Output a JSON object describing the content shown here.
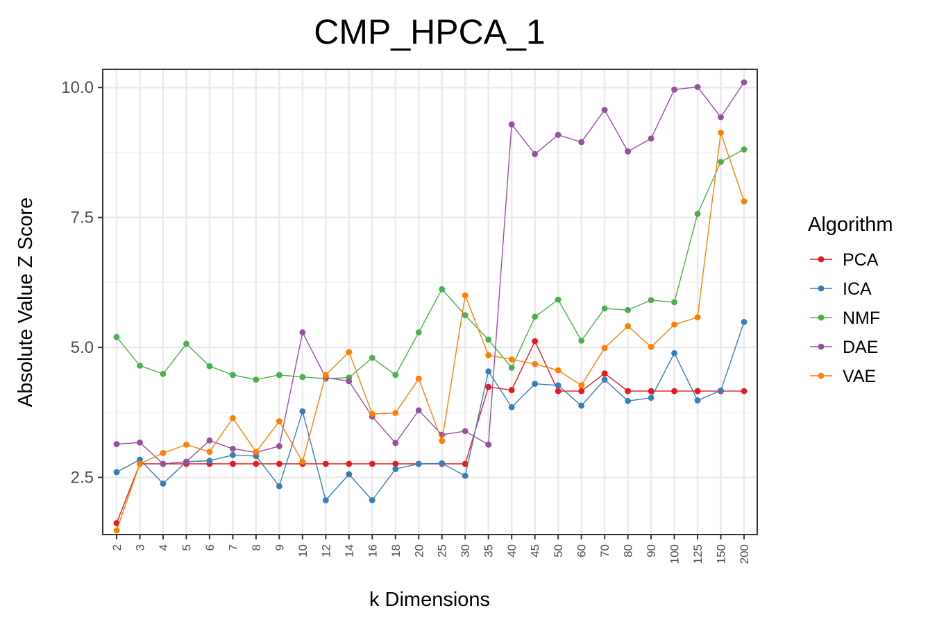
{
  "chart_data": {
    "type": "line",
    "title": "CMP_HPCA_1",
    "xlabel": "k Dimensions",
    "ylabel": "Absolute Value Z Score",
    "categories": [
      "2",
      "3",
      "4",
      "5",
      "6",
      "7",
      "8",
      "9",
      "10",
      "12",
      "14",
      "16",
      "18",
      "20",
      "25",
      "30",
      "35",
      "40",
      "45",
      "50",
      "60",
      "70",
      "80",
      "90",
      "100",
      "125",
      "150",
      "200"
    ],
    "ylim": [
      1.4,
      10.35
    ],
    "yticks": [
      2.5,
      5.0,
      7.5,
      10.0
    ],
    "ytick_labels": [
      "2.5",
      "5.0",
      "7.5",
      "10.0"
    ],
    "grid": true,
    "legend_title": "Algorithm",
    "legend_position": "right",
    "series": [
      {
        "name": "PCA",
        "color": "#e41a1c",
        "values": [
          1.62,
          2.76,
          2.76,
          2.76,
          2.76,
          2.76,
          2.76,
          2.76,
          2.76,
          2.76,
          2.76,
          2.76,
          2.76,
          2.76,
          2.76,
          2.76,
          4.24,
          4.18,
          5.12,
          4.16,
          4.16,
          4.5,
          4.16,
          4.16,
          4.16,
          4.16,
          4.16,
          4.16
        ]
      },
      {
        "name": "ICA",
        "color": "#377eb8",
        "values": [
          2.6,
          2.84,
          2.38,
          2.8,
          2.82,
          2.93,
          2.91,
          2.33,
          3.77,
          2.06,
          2.56,
          2.06,
          2.66,
          2.76,
          2.77,
          2.53,
          4.54,
          3.85,
          4.3,
          4.27,
          3.88,
          4.38,
          3.97,
          4.03,
          4.89,
          3.98,
          4.17,
          5.49
        ]
      },
      {
        "name": "NMF",
        "color": "#4daf4a",
        "values": [
          5.2,
          4.65,
          4.49,
          5.07,
          4.64,
          4.47,
          4.38,
          4.47,
          4.43,
          4.4,
          4.42,
          4.8,
          4.47,
          5.29,
          6.12,
          5.62,
          5.15,
          4.61,
          5.59,
          5.92,
          5.13,
          5.75,
          5.72,
          5.91,
          5.87,
          7.57,
          8.57,
          8.81
        ]
      },
      {
        "name": "DAE",
        "color": "#984ea3",
        "values": [
          3.14,
          3.17,
          2.76,
          2.8,
          3.21,
          3.05,
          2.98,
          3.1,
          5.29,
          4.42,
          4.35,
          3.67,
          3.16,
          3.79,
          3.32,
          3.39,
          3.13,
          9.29,
          8.72,
          9.09,
          8.95,
          9.57,
          8.77,
          9.02,
          9.96,
          10.01,
          9.43,
          10.1
        ]
      },
      {
        "name": "VAE",
        "color": "#ff7f00",
        "values": [
          1.48,
          2.76,
          2.97,
          3.13,
          2.99,
          3.64,
          2.99,
          3.58,
          2.8,
          4.47,
          4.91,
          3.72,
          3.74,
          4.4,
          3.2,
          6.0,
          4.85,
          4.77,
          4.68,
          4.56,
          4.27,
          4.99,
          5.41,
          5.01,
          5.44,
          5.58,
          9.13,
          7.81
        ]
      }
    ]
  }
}
